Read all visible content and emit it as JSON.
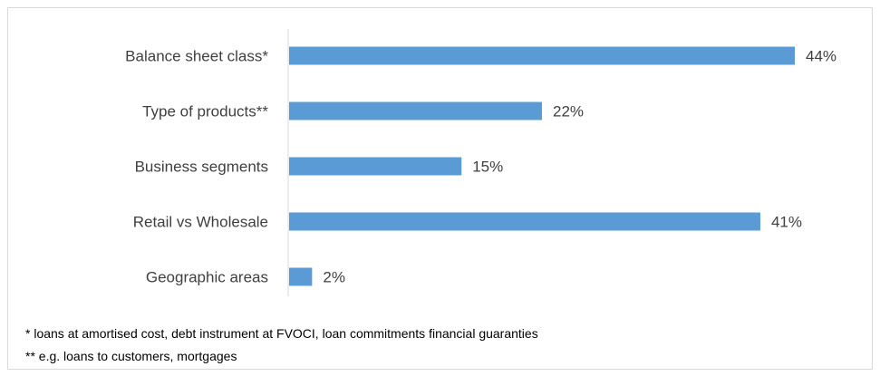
{
  "chart_data": {
    "type": "bar",
    "orientation": "horizontal",
    "categories": [
      "Balance sheet class*",
      "Type of products**",
      "Business segments",
      "Retail vs Wholesale",
      "Geographic areas"
    ],
    "values": [
      44,
      22,
      15,
      41,
      2
    ],
    "value_labels": [
      "44%",
      "22%",
      "15%",
      "41%",
      "2%"
    ],
    "unit": "%",
    "title": "",
    "xlabel": "",
    "ylabel": "",
    "xlim": [
      0,
      44
    ],
    "grid": false,
    "bar_color": "#5b9bd5",
    "axis_color": "#d9d9d9",
    "label_color": "#404040"
  },
  "footnotes": [
    "*  loans at amortised cost, debt instrument at FVOCI, loan commitments financial guaranties",
    "** e.g.  loans to customers, mortgages"
  ]
}
